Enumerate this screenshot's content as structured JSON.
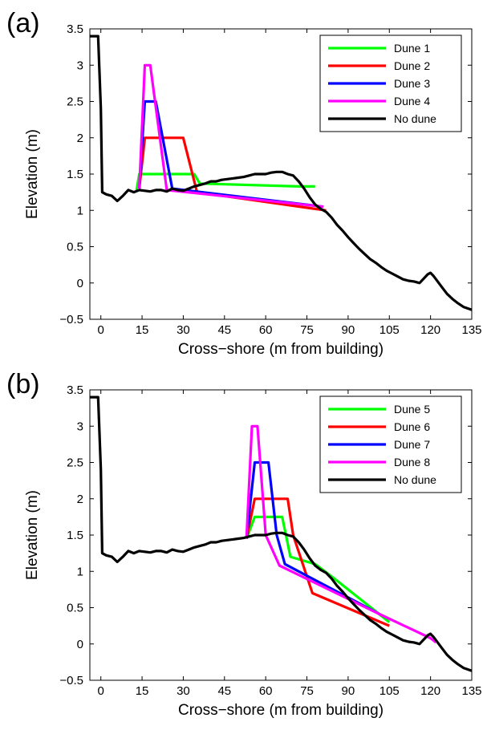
{
  "chart_data": [
    {
      "panel_label": "(a)",
      "type": "line",
      "xlabel": "Cross−shore (m from building)",
      "ylabel": "Elevation (m)",
      "xlim": [
        -4,
        135
      ],
      "ylim": [
        -0.5,
        3.5
      ],
      "xticks": [
        0,
        15,
        30,
        45,
        60,
        75,
        90,
        105,
        120,
        135
      ],
      "xtick_labels": [
        "0",
        "15",
        "30",
        "45",
        "60",
        "75",
        "90",
        "105",
        "120",
        "135"
      ],
      "yticks": [
        -0.5,
        0,
        0.5,
        1,
        1.5,
        2,
        2.5,
        3,
        3.5
      ],
      "ytick_labels": [
        "−0.5",
        "0",
        "0.5",
        "1",
        "1.5",
        "2",
        "2.5",
        "3",
        "3.5"
      ],
      "legend_position": "top-right",
      "series": [
        {
          "name": "Dune 1",
          "color": "#00ff00",
          "x": [
            13,
            14,
            15,
            34,
            36,
            72,
            78
          ],
          "y": [
            1.28,
            1.5,
            1.5,
            1.5,
            1.37,
            1.33,
            1.33
          ]
        },
        {
          "name": "Dune 2",
          "color": "#ff0000",
          "x": [
            14,
            16,
            28,
            30,
            35,
            82
          ],
          "y": [
            1.3,
            2.0,
            2.0,
            2.0,
            1.25,
            1.0
          ]
        },
        {
          "name": "Dune 3",
          "color": "#0000ff",
          "x": [
            14,
            16,
            20,
            26,
            81
          ],
          "y": [
            1.3,
            2.5,
            2.5,
            1.3,
            1.05
          ]
        },
        {
          "name": "Dune 4",
          "color": "#ff00ff",
          "x": [
            14,
            16,
            18,
            24,
            81
          ],
          "y": [
            1.3,
            3.0,
            3.0,
            1.28,
            1.05
          ]
        },
        {
          "name": "No dune",
          "color": "#000000",
          "x": [
            -4,
            -1,
            0,
            0.5,
            2,
            4,
            6,
            8,
            10,
            12,
            14,
            16,
            18,
            20,
            22,
            24,
            26,
            28,
            30,
            32,
            34,
            36,
            38,
            40,
            42,
            44,
            46,
            48,
            50,
            52,
            54,
            56,
            58,
            60,
            62,
            64,
            66,
            68,
            70,
            72,
            74,
            76,
            78,
            80,
            82,
            84,
            86,
            88,
            90,
            92,
            94,
            96,
            98,
            100,
            102,
            104,
            106,
            108,
            110,
            112,
            114,
            116,
            118,
            119,
            120,
            121,
            122,
            124,
            126,
            128,
            130,
            132,
            135
          ],
          "y": [
            3.4,
            3.4,
            2.4,
            1.25,
            1.22,
            1.2,
            1.13,
            1.2,
            1.28,
            1.25,
            1.28,
            1.27,
            1.26,
            1.28,
            1.28,
            1.26,
            1.3,
            1.28,
            1.27,
            1.3,
            1.33,
            1.35,
            1.37,
            1.4,
            1.4,
            1.42,
            1.43,
            1.44,
            1.45,
            1.46,
            1.48,
            1.5,
            1.5,
            1.5,
            1.52,
            1.53,
            1.53,
            1.5,
            1.48,
            1.4,
            1.3,
            1.18,
            1.08,
            1.02,
            0.98,
            0.9,
            0.8,
            0.72,
            0.63,
            0.55,
            0.47,
            0.4,
            0.33,
            0.28,
            0.22,
            0.17,
            0.13,
            0.09,
            0.05,
            0.03,
            0.02,
            0.0,
            0.08,
            0.12,
            0.14,
            0.1,
            0.05,
            -0.05,
            -0.15,
            -0.22,
            -0.28,
            -0.33,
            -0.37
          ]
        }
      ]
    },
    {
      "panel_label": "(b)",
      "type": "line",
      "xlabel": "Cross−shore (m from building)",
      "ylabel": "Elevation (m)",
      "xlim": [
        -4,
        135
      ],
      "ylim": [
        -0.5,
        3.5
      ],
      "xticks": [
        0,
        15,
        30,
        45,
        60,
        75,
        90,
        105,
        120,
        135
      ],
      "xtick_labels": [
        "0",
        "15",
        "30",
        "45",
        "60",
        "75",
        "90",
        "105",
        "120",
        "135"
      ],
      "yticks": [
        -0.5,
        0,
        0.5,
        1,
        1.5,
        2,
        2.5,
        3,
        3.5
      ],
      "ytick_labels": [
        "−0.5",
        "0",
        "0.5",
        "1",
        "1.5",
        "2",
        "2.5",
        "3",
        "3.5"
      ],
      "legend_position": "top-right",
      "series": [
        {
          "name": "Dune 5",
          "color": "#00ff00",
          "x": [
            53,
            56,
            66,
            69,
            78,
            85,
            105
          ],
          "y": [
            1.45,
            1.75,
            1.75,
            1.2,
            1.1,
            0.9,
            0.3
          ]
        },
        {
          "name": "Dune 6",
          "color": "#ff0000",
          "x": [
            53,
            56,
            68,
            70,
            77,
            105
          ],
          "y": [
            1.45,
            2.0,
            2.0,
            1.5,
            0.7,
            0.25
          ]
        },
        {
          "name": "Dune 7",
          "color": "#0000ff",
          "x": [
            53,
            56,
            61,
            64,
            67,
            102
          ],
          "y": [
            1.45,
            2.5,
            2.5,
            1.5,
            1.1,
            0.4
          ]
        },
        {
          "name": "Dune 8",
          "color": "#ff00ff",
          "x": [
            53,
            55,
            57,
            60,
            65,
            102,
            120,
            122
          ],
          "y": [
            1.45,
            3.0,
            3.0,
            1.5,
            1.08,
            0.4,
            0.08,
            0.02
          ]
        },
        {
          "name": "No dune",
          "color": "#000000",
          "x": [
            -4,
            -1,
            0,
            0.5,
            2,
            4,
            6,
            8,
            10,
            12,
            14,
            16,
            18,
            20,
            22,
            24,
            26,
            28,
            30,
            32,
            34,
            36,
            38,
            40,
            42,
            44,
            46,
            48,
            50,
            52,
            54,
            56,
            58,
            60,
            62,
            64,
            66,
            68,
            70,
            72,
            74,
            76,
            78,
            80,
            82,
            84,
            86,
            88,
            90,
            92,
            94,
            96,
            98,
            100,
            102,
            104,
            106,
            108,
            110,
            112,
            114,
            116,
            118,
            119,
            120,
            121,
            122,
            124,
            126,
            128,
            130,
            132,
            135
          ],
          "y": [
            3.4,
            3.4,
            2.4,
            1.25,
            1.22,
            1.2,
            1.13,
            1.2,
            1.28,
            1.25,
            1.28,
            1.27,
            1.26,
            1.28,
            1.28,
            1.26,
            1.3,
            1.28,
            1.27,
            1.3,
            1.33,
            1.35,
            1.37,
            1.4,
            1.4,
            1.42,
            1.43,
            1.44,
            1.45,
            1.46,
            1.48,
            1.5,
            1.5,
            1.5,
            1.52,
            1.53,
            1.53,
            1.5,
            1.48,
            1.4,
            1.3,
            1.18,
            1.08,
            1.02,
            0.98,
            0.9,
            0.8,
            0.72,
            0.63,
            0.55,
            0.47,
            0.4,
            0.33,
            0.28,
            0.22,
            0.17,
            0.13,
            0.09,
            0.05,
            0.03,
            0.02,
            0.0,
            0.08,
            0.12,
            0.14,
            0.1,
            0.05,
            -0.05,
            -0.15,
            -0.22,
            -0.28,
            -0.33,
            -0.37
          ]
        }
      ]
    }
  ]
}
